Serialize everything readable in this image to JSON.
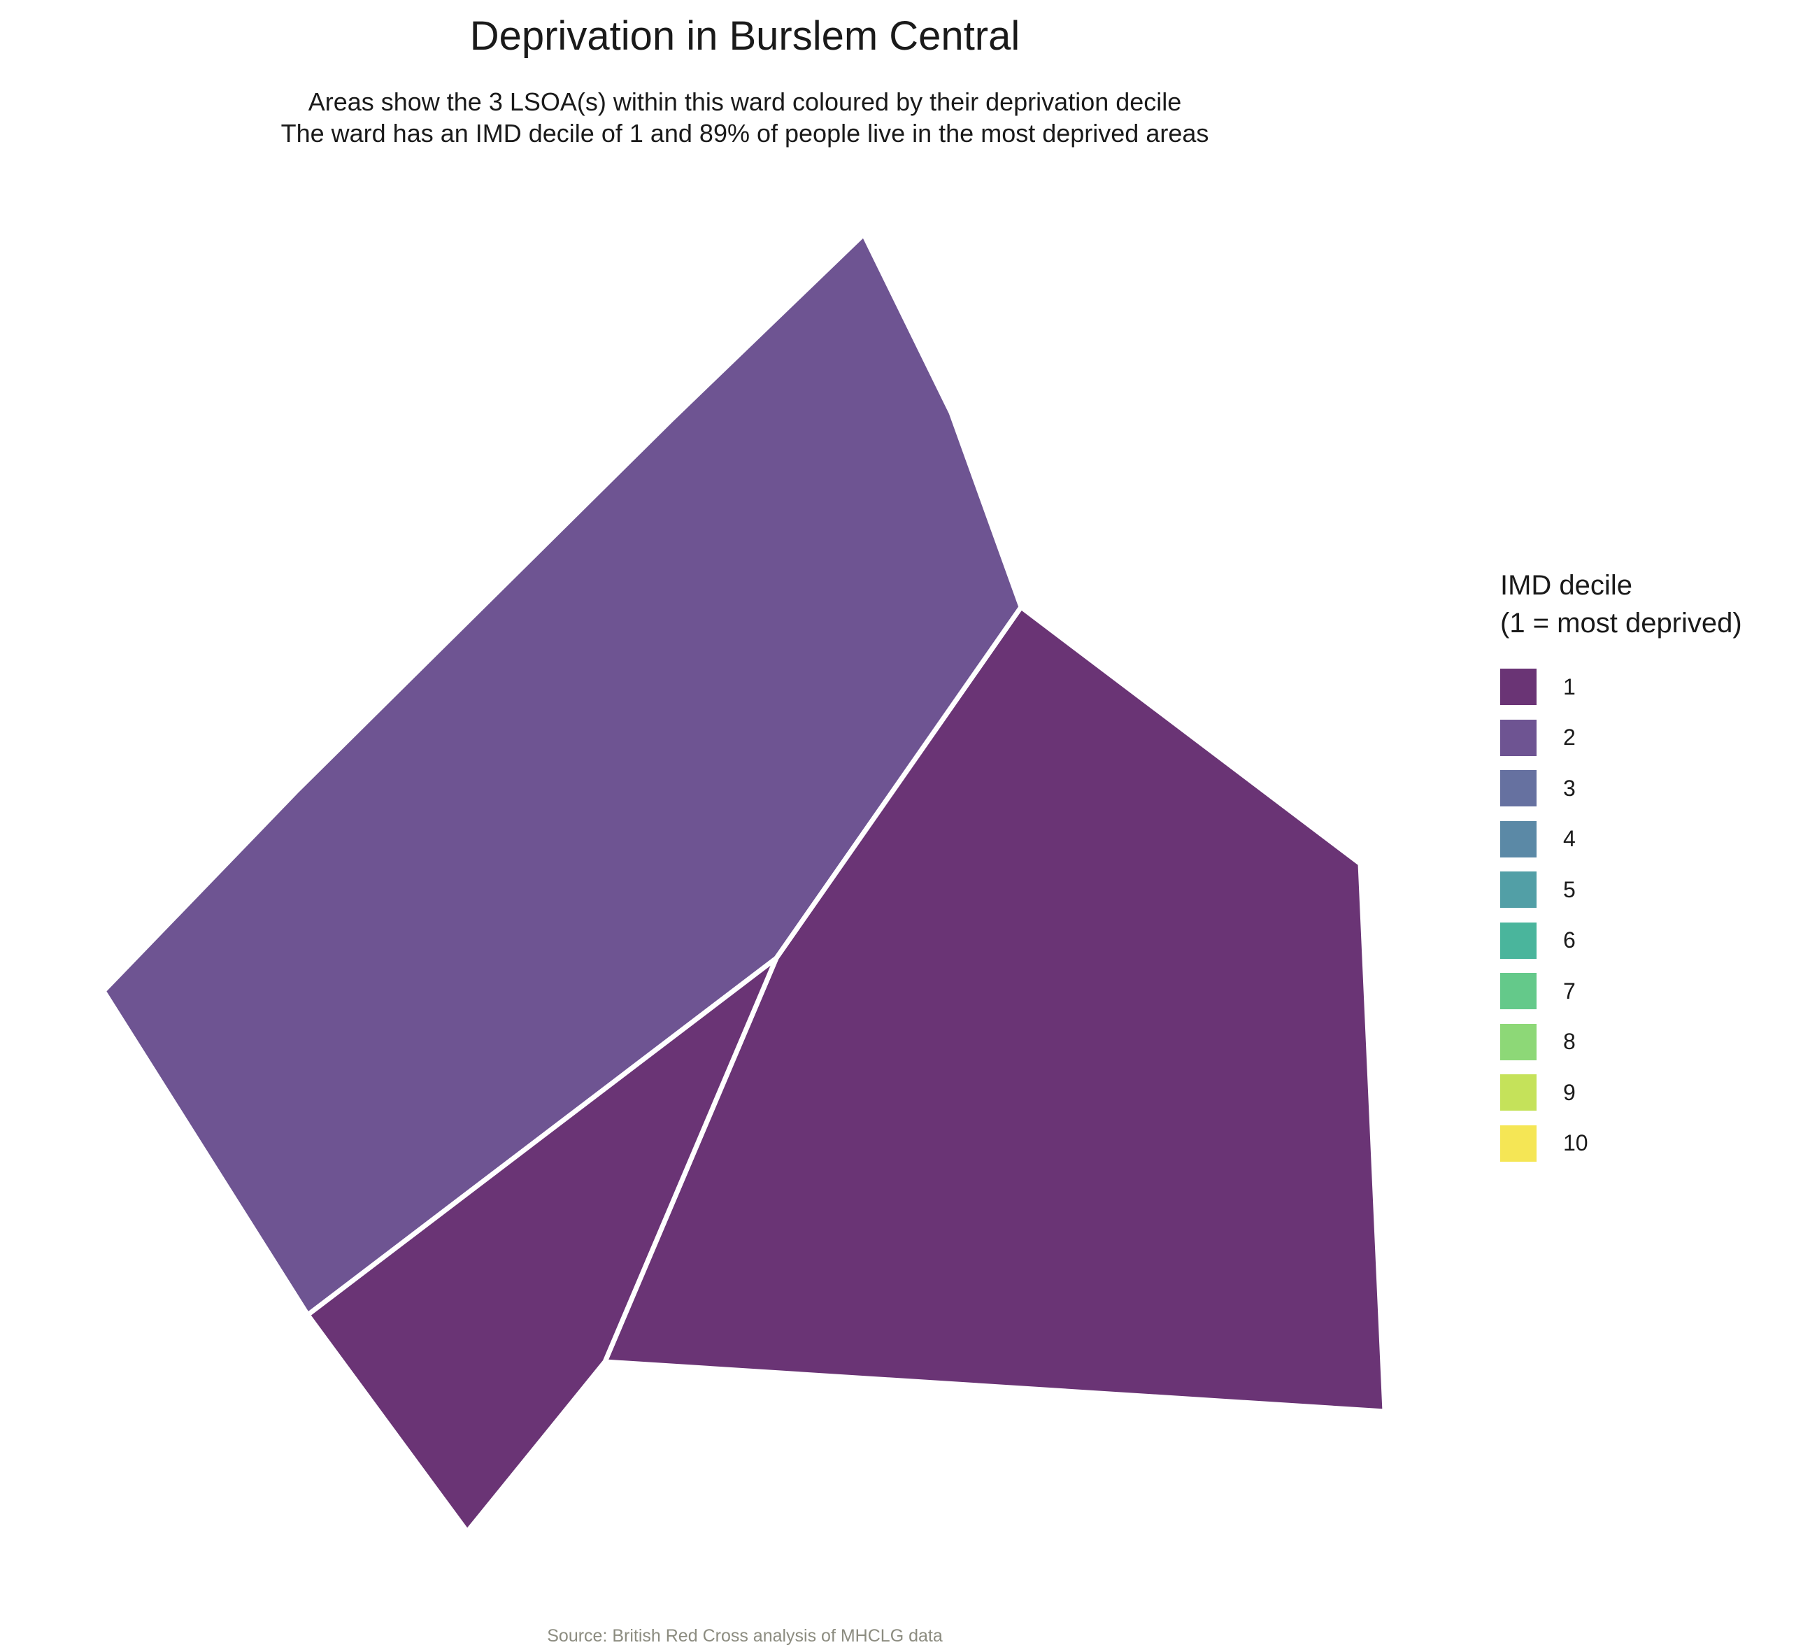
{
  "title": "Deprivation in Burslem Central",
  "subtitle_line1": "Areas show the 3 LSOA(s) within this ward coloured by their deprivation decile",
  "subtitle_line2": "The ward has an IMD decile of 1 and 89% of people live in the most deprived areas",
  "caption": "Source: British Red Cross analysis of MHCLG data",
  "legend": {
    "title_line1": "IMD decile",
    "title_line2": "(1 = most deprived)",
    "items": [
      {
        "label": "1",
        "color": "#6a3475"
      },
      {
        "label": "2",
        "color": "#6e5492"
      },
      {
        "label": "3",
        "color": "#6671a0"
      },
      {
        "label": "4",
        "color": "#5b89a6"
      },
      {
        "label": "5",
        "color": "#529fa6"
      },
      {
        "label": "6",
        "color": "#4ab59c"
      },
      {
        "label": "7",
        "color": "#64c98a"
      },
      {
        "label": "8",
        "color": "#8dd877"
      },
      {
        "label": "9",
        "color": "#c5e25a"
      },
      {
        "label": "10",
        "color": "#f5e655"
      }
    ]
  },
  "map_data": {
    "type": "choropleth",
    "areas": [
      {
        "id": "lsoa-north-west",
        "imd_decile": 2
      },
      {
        "id": "lsoa-south-east",
        "imd_decile": 1
      },
      {
        "id": "lsoa-south-west",
        "imd_decile": 1
      }
    ]
  }
}
